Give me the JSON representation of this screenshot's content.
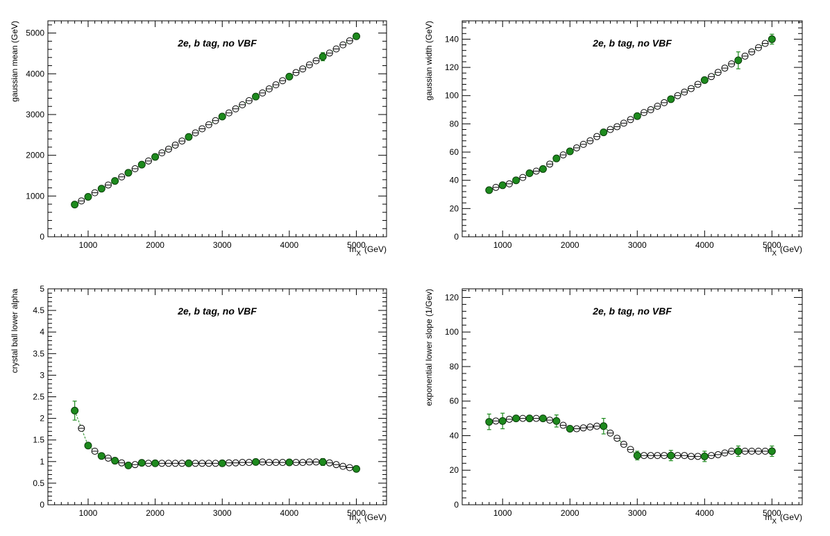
{
  "chart_data": [
    {
      "type": "scatter",
      "title": "2e, b tag, no VBF",
      "xlabel_main": "m",
      "xlabel_sub": "X",
      "xlabel_unit": "(GeV)",
      "ylabel": "gaussian mean (GeV)",
      "xlim": [
        400,
        5450
      ],
      "ylim": [
        0,
        5300
      ],
      "xticks": [
        1000,
        2000,
        3000,
        4000,
        5000
      ],
      "yticks": [
        0,
        1000,
        2000,
        3000,
        4000,
        5000
      ],
      "interp": {
        "x": [
          900,
          1100,
          1300,
          1500,
          1700,
          1900,
          2100,
          2200,
          2300,
          2400,
          2600,
          2700,
          2800,
          2900,
          3100,
          3200,
          3300,
          3400,
          3600,
          3700,
          3800,
          3900,
          4100,
          4200,
          4300,
          4400,
          4600,
          4700,
          4800,
          4900
        ],
        "y": [
          880,
          1080,
          1270,
          1470,
          1670,
          1860,
          2060,
          2150,
          2250,
          2350,
          2550,
          2650,
          2750,
          2850,
          3040,
          3140,
          3240,
          3340,
          3530,
          3630,
          3730,
          3830,
          4030,
          4120,
          4220,
          4320,
          4510,
          4610,
          4710,
          4810
        ]
      },
      "measured": {
        "x": [
          800,
          1000,
          1200,
          1400,
          1600,
          1800,
          2000,
          2500,
          3000,
          3500,
          4000,
          4500,
          5000
        ],
        "y": [
          790,
          980,
          1180,
          1370,
          1570,
          1770,
          1960,
          2450,
          2950,
          3440,
          3930,
          4420,
          4920
        ],
        "err": [
          25,
          30,
          30,
          30,
          30,
          30,
          30,
          40,
          40,
          45,
          45,
          100,
          50
        ]
      }
    },
    {
      "type": "scatter",
      "title": "2e, b tag, no VBF",
      "xlabel_main": "m",
      "xlabel_sub": "X",
      "xlabel_unit": "(GeV)",
      "ylabel": "gaussian width (GeV)",
      "xlim": [
        400,
        5450
      ],
      "ylim": [
        0,
        153
      ],
      "xticks": [
        1000,
        2000,
        3000,
        4000,
        5000
      ],
      "yticks": [
        0,
        20,
        40,
        60,
        80,
        100,
        120,
        140
      ],
      "interp": {
        "x": [
          900,
          1100,
          1300,
          1500,
          1700,
          1900,
          2100,
          2200,
          2300,
          2400,
          2600,
          2700,
          2800,
          2900,
          3100,
          3200,
          3300,
          3400,
          3600,
          3700,
          3800,
          3900,
          4100,
          4200,
          4300,
          4400,
          4600,
          4700,
          4800,
          4900
        ],
        "y": [
          35,
          37.5,
          42,
          46.5,
          51.5,
          58,
          63,
          65.5,
          68,
          71,
          76,
          78,
          80.5,
          83,
          88,
          90,
          92.5,
          95,
          100,
          102.5,
          105,
          108,
          113.5,
          116.5,
          119.5,
          122.5,
          128,
          131,
          134,
          137
        ]
      },
      "measured": {
        "x": [
          800,
          1000,
          1200,
          1400,
          1600,
          1800,
          2000,
          2500,
          3000,
          3500,
          4000,
          4500,
          5000
        ],
        "y": [
          33,
          36.5,
          40,
          45,
          48,
          55.5,
          60.5,
          74,
          85.5,
          97.5,
          111,
          125,
          140
        ],
        "err": [
          1.5,
          1.5,
          1.5,
          1.5,
          1.5,
          2,
          2,
          2,
          2,
          2,
          2,
          6,
          3.5
        ]
      }
    },
    {
      "type": "scatter",
      "title": "2e, b tag, no VBF",
      "xlabel_main": "m",
      "xlabel_sub": "X",
      "xlabel_unit": "(GeV)",
      "ylabel": "crystal ball lower alpha",
      "xlim": [
        400,
        5450
      ],
      "ylim": [
        0,
        5
      ],
      "xticks": [
        1000,
        2000,
        3000,
        4000,
        5000
      ],
      "yticks": [
        0,
        0.5,
        1,
        1.5,
        2,
        2.5,
        3,
        3.5,
        4,
        4.5,
        5
      ],
      "interp": {
        "x": [
          900,
          1100,
          1300,
          1500,
          1700,
          1900,
          2100,
          2200,
          2300,
          2400,
          2600,
          2700,
          2800,
          2900,
          3100,
          3200,
          3300,
          3400,
          3600,
          3700,
          3800,
          3900,
          4100,
          4200,
          4300,
          4400,
          4600,
          4700,
          4800,
          4900
        ],
        "y": [
          1.77,
          1.24,
          1.08,
          0.97,
          0.93,
          0.96,
          0.96,
          0.96,
          0.96,
          0.96,
          0.96,
          0.96,
          0.96,
          0.96,
          0.97,
          0.97,
          0.98,
          0.98,
          0.99,
          0.98,
          0.98,
          0.98,
          0.98,
          0.98,
          0.99,
          0.99,
          0.97,
          0.93,
          0.89,
          0.86
        ]
      },
      "measured": {
        "x": [
          800,
          1000,
          1200,
          1400,
          1600,
          1800,
          2000,
          2500,
          3000,
          3500,
          4000,
          4500,
          5000
        ],
        "y": [
          2.18,
          1.37,
          1.13,
          1.02,
          0.91,
          0.97,
          0.96,
          0.96,
          0.96,
          0.99,
          0.98,
          0.99,
          0.83
        ],
        "err": [
          0.22,
          0.06,
          0.04,
          0.04,
          0.04,
          0.04,
          0.04,
          0.04,
          0.04,
          0.05,
          0.05,
          0.08,
          0.05
        ]
      }
    },
    {
      "type": "scatter",
      "title": "2e, b tag, no VBF",
      "xlabel_main": "m",
      "xlabel_sub": "X",
      "xlabel_unit": "(GeV)",
      "ylabel": "exponential lower slope (1/Gev)",
      "xlim": [
        400,
        5450
      ],
      "ylim": [
        0,
        125
      ],
      "xticks": [
        1000,
        2000,
        3000,
        4000,
        5000
      ],
      "yticks": [
        0,
        20,
        40,
        60,
        80,
        100,
        120
      ],
      "interp": {
        "x": [
          900,
          1100,
          1300,
          1500,
          1700,
          1900,
          2100,
          2200,
          2300,
          2400,
          2600,
          2700,
          2800,
          2900,
          3100,
          3200,
          3300,
          3400,
          3600,
          3700,
          3800,
          3900,
          4100,
          4200,
          4300,
          4400,
          4600,
          4700,
          4800,
          4900
        ],
        "y": [
          48.5,
          49.5,
          50,
          50,
          49,
          46,
          44,
          44.5,
          45,
          45.5,
          41.5,
          38.5,
          35,
          32,
          28.5,
          28.5,
          28.5,
          28.5,
          28.5,
          28.5,
          28,
          28,
          28.5,
          29,
          30,
          31,
          31,
          31,
          31,
          31
        ]
      },
      "measured": {
        "x": [
          800,
          1000,
          1200,
          1400,
          1600,
          1800,
          2000,
          2500,
          3000,
          3500,
          4000,
          4500,
          5000
        ],
        "y": [
          48,
          48.5,
          50,
          50,
          50,
          48.5,
          44,
          45.5,
          28.5,
          28.5,
          28,
          31,
          31
        ],
        "err": [
          4.5,
          4.5,
          1.5,
          1.5,
          1.5,
          3.5,
          1.5,
          4.5,
          2.5,
          3,
          3,
          3,
          3
        ]
      }
    }
  ],
  "colors": {
    "measured_fill": "#1d8a1d",
    "measured_stroke": "#0b3d0b",
    "interp_fill": "#ffffff",
    "interp_stroke": "#000000",
    "error_bar": "#1d8a1d",
    "curve": "#1d8a1d"
  }
}
